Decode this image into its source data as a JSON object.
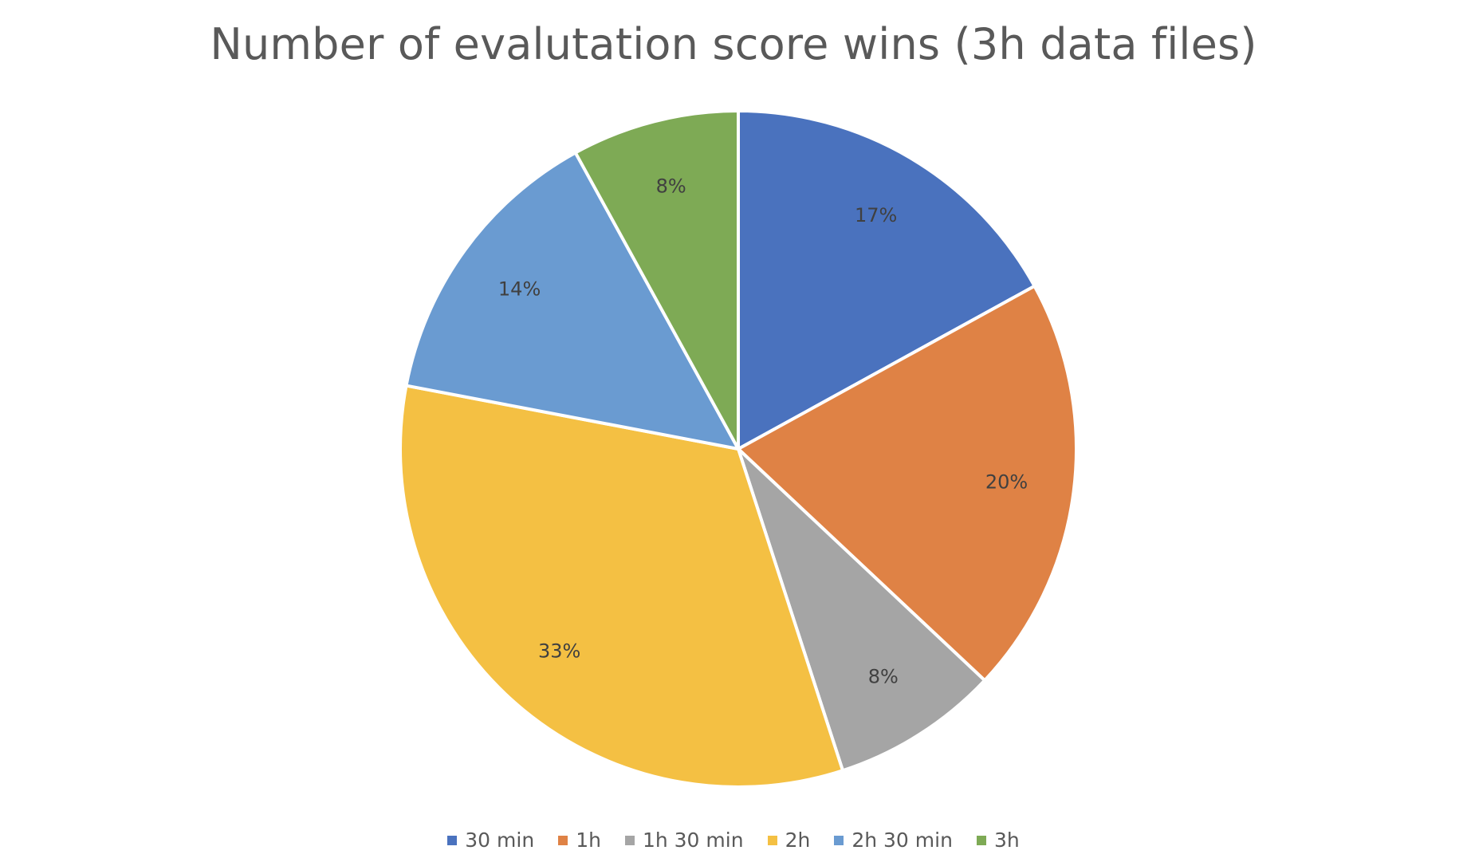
{
  "chart_data": {
    "type": "pie",
    "title": "Number of evalutation score wins (3h data files)",
    "categories": [
      "30 min",
      "1h",
      "1h 30 min",
      "2h",
      "2h 30 min",
      "3h"
    ],
    "values": [
      17,
      20,
      8,
      33,
      14,
      8
    ],
    "data_labels": [
      "17%",
      "20%",
      "8%",
      "33%",
      "14%",
      "8%"
    ],
    "colors": [
      "#4A72BE",
      "#DF8245",
      "#A5A5A5",
      "#F4C043",
      "#6A9BD1",
      "#7EAA55"
    ],
    "start_angle_deg": 0,
    "direction": "clockwise",
    "legend_position": "bottom"
  }
}
